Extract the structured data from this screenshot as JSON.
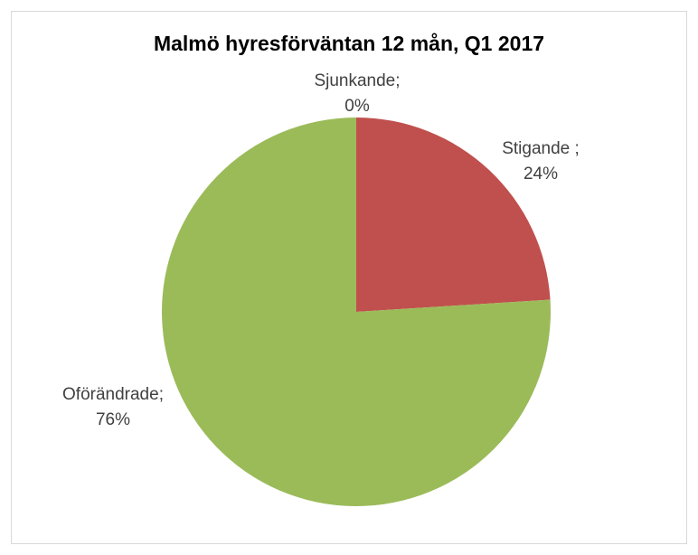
{
  "chart_data": {
    "type": "pie",
    "title": "Malmö hyresförväntan 12 mån, Q1 2017",
    "categories": [
      "Stigande ;",
      "Oförändrade;",
      "Sjunkande;"
    ],
    "values": [
      24,
      76,
      0
    ],
    "value_labels": [
      "24%",
      "76%",
      "0%"
    ],
    "colors": [
      "#c0504d",
      "#9bbb59",
      "#4f81bd"
    ]
  }
}
